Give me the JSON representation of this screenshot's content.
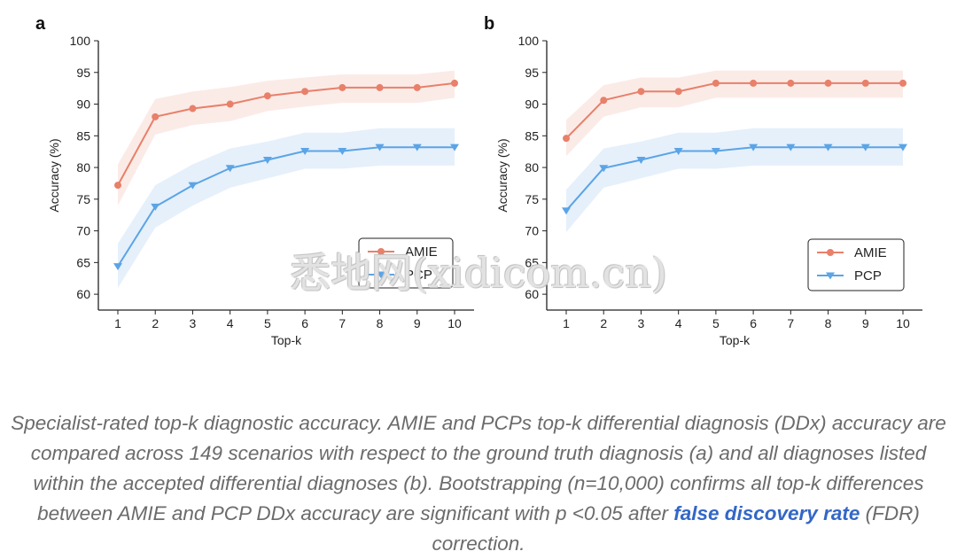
{
  "chart_data": [
    {
      "type": "line",
      "panel_label": "a",
      "xlabel": "Top-k",
      "ylabel": "Accuracy (%)",
      "x": [
        1,
        2,
        3,
        4,
        5,
        6,
        7,
        8,
        9,
        10
      ],
      "xticks": [
        "1",
        "2",
        "3",
        "4",
        "5",
        "6",
        "7",
        "8",
        "9",
        "10"
      ],
      "yticks": [
        "60",
        "65",
        "70",
        "75",
        "80",
        "85",
        "90",
        "95",
        "100"
      ],
      "ylim": [
        57.5,
        100
      ],
      "legend_position": "lower-right",
      "grid": false,
      "series": [
        {
          "name": "AMIE",
          "color": "#e8806a",
          "marker": "circle",
          "values": [
            77.2,
            88.0,
            89.3,
            90.0,
            91.3,
            92.0,
            92.6,
            92.6,
            92.6,
            93.3
          ],
          "ci_low": [
            74.0,
            85.2,
            86.7,
            87.3,
            88.9,
            89.6,
            90.2,
            90.2,
            90.2,
            91.0
          ],
          "ci_high": [
            80.5,
            90.8,
            92.0,
            92.7,
            93.7,
            94.2,
            94.7,
            94.7,
            94.7,
            95.3
          ]
        },
        {
          "name": "PCP",
          "color": "#5ba4e6",
          "marker": "triangle-down",
          "values": [
            64.4,
            73.8,
            77.2,
            79.9,
            81.2,
            82.6,
            82.6,
            83.2,
            83.2,
            83.2
          ],
          "ci_low": [
            61.0,
            70.5,
            74.0,
            76.8,
            78.3,
            79.8,
            79.8,
            80.3,
            80.3,
            80.3
          ],
          "ci_high": [
            68.0,
            77.2,
            80.5,
            83.0,
            84.1,
            85.5,
            85.5,
            86.2,
            86.2,
            86.2
          ]
        }
      ]
    },
    {
      "type": "line",
      "panel_label": "b",
      "xlabel": "Top-k",
      "ylabel": "Accuracy (%)",
      "x": [
        1,
        2,
        3,
        4,
        5,
        6,
        7,
        8,
        9,
        10
      ],
      "xticks": [
        "1",
        "2",
        "3",
        "4",
        "5",
        "6",
        "7",
        "8",
        "9",
        "10"
      ],
      "yticks": [
        "60",
        "65",
        "70",
        "75",
        "80",
        "85",
        "90",
        "95",
        "100"
      ],
      "ylim": [
        57.5,
        100
      ],
      "legend_position": "center-right",
      "grid": false,
      "series": [
        {
          "name": "AMIE",
          "color": "#e8806a",
          "marker": "circle",
          "values": [
            84.6,
            90.6,
            92.0,
            92.0,
            93.3,
            93.3,
            93.3,
            93.3,
            93.3,
            93.3
          ],
          "ci_low": [
            81.8,
            88.0,
            89.5,
            89.5,
            91.0,
            91.0,
            91.0,
            91.0,
            91.0,
            91.0
          ],
          "ci_high": [
            87.5,
            93.0,
            94.2,
            94.2,
            95.3,
            95.3,
            95.3,
            95.3,
            95.3,
            95.3
          ]
        },
        {
          "name": "PCP",
          "color": "#5ba4e6",
          "marker": "triangle-down",
          "values": [
            73.2,
            79.9,
            81.2,
            82.6,
            82.6,
            83.2,
            83.2,
            83.2,
            83.2,
            83.2
          ],
          "ci_low": [
            69.8,
            76.8,
            78.3,
            79.8,
            79.8,
            80.3,
            80.3,
            80.3,
            80.3,
            80.3
          ],
          "ci_high": [
            76.5,
            83.0,
            84.1,
            85.5,
            85.5,
            86.2,
            86.2,
            86.2,
            86.2,
            86.2
          ]
        }
      ]
    }
  ],
  "caption": {
    "text_before": "Specialist-rated top-k diagnostic accuracy. AMIE and PCPs top-k differential diagnosis (DDx) accuracy are compared across 149 scenarios with respect to the ground truth diagnosis (a) and all diagnoses listed within the accepted differential diagnoses (b). Bootstrapping (n=10,000) confirms all top-k differences between AMIE and PCP DDx accuracy are significant with p <0.05 after ",
    "link_text": "false discovery rate",
    "text_after": " (FDR) correction."
  },
  "watermark": "悉地网(xidicom.cn)"
}
